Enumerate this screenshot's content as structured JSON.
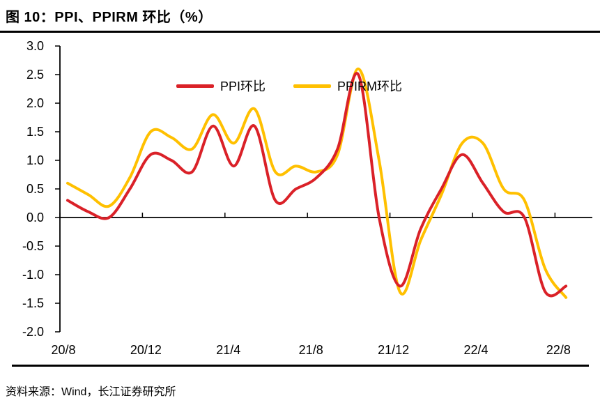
{
  "figure": {
    "title": "图 10：PPI、PPIRM 环比（%）",
    "source": "资料来源：Wind，长江证券研究所"
  },
  "chart_data": {
    "type": "line",
    "title": "图 10：PPI、PPIRM 环比（%）",
    "smooth": true,
    "grid": false,
    "legend_position": "top-center",
    "xlabel": "",
    "ylabel": "",
    "ylim": [
      -2.0,
      3.0
    ],
    "y_ticks": [
      3.0,
      2.5,
      2.0,
      1.5,
      1.0,
      0.5,
      0.0,
      -0.5,
      -1.0,
      -1.5,
      -2.0
    ],
    "x_tick_labels": [
      "20/8",
      "20/12",
      "21/4",
      "21/8",
      "21/12",
      "22/4",
      "22/8"
    ],
    "categories": [
      "20/8",
      "20/9",
      "20/10",
      "20/11",
      "20/12",
      "21/1",
      "21/2",
      "21/3",
      "21/4",
      "21/5",
      "21/6",
      "21/7",
      "21/8",
      "21/9",
      "21/10",
      "21/11",
      "21/12",
      "22/1",
      "22/2",
      "22/3",
      "22/4",
      "22/5",
      "22/6",
      "22/7",
      "22/8"
    ],
    "series": [
      {
        "name": "PPI环比",
        "color": "#da2128",
        "values": [
          0.3,
          0.1,
          0.0,
          0.5,
          1.1,
          1.0,
          0.8,
          1.6,
          0.9,
          1.6,
          0.3,
          0.5,
          0.7,
          1.2,
          2.5,
          0.0,
          -1.2,
          -0.2,
          0.5,
          1.1,
          0.6,
          0.1,
          0.0,
          -1.3,
          -1.2
        ]
      },
      {
        "name": "PPIRM环比",
        "color": "#ffc000",
        "values": [
          0.6,
          0.4,
          0.2,
          0.7,
          1.5,
          1.4,
          1.2,
          1.8,
          1.3,
          1.9,
          0.8,
          0.9,
          0.8,
          1.1,
          2.6,
          1.0,
          -1.3,
          -0.4,
          0.4,
          1.3,
          1.3,
          0.5,
          0.3,
          -0.9,
          -1.4
        ]
      }
    ],
    "colors": {
      "axis": "#000000",
      "background": "#ffffff"
    }
  }
}
